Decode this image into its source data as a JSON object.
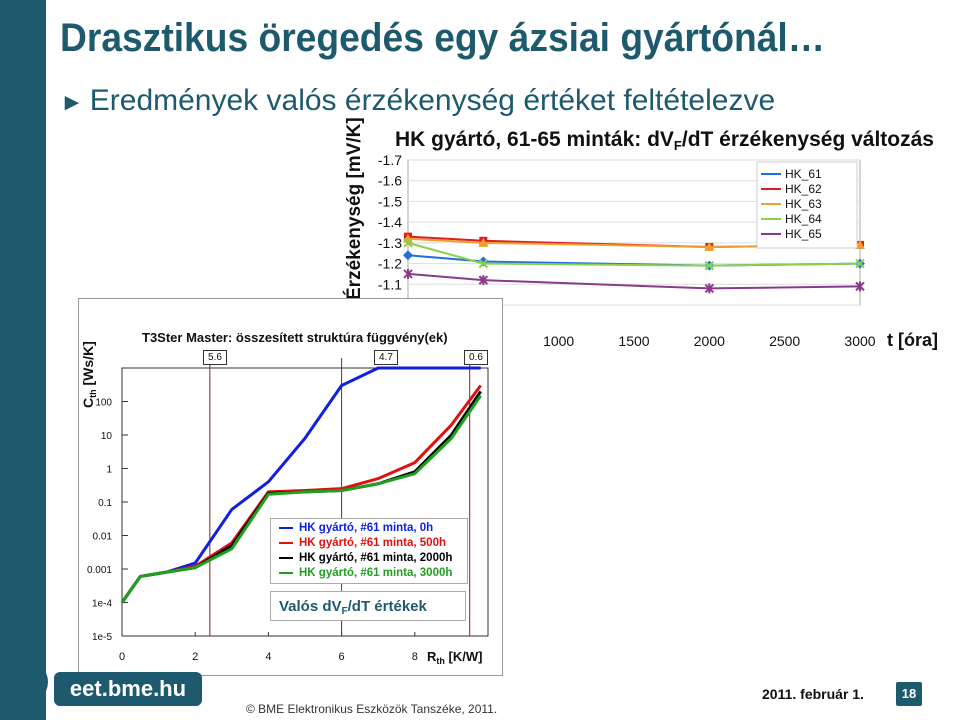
{
  "slide": {
    "title": "Drasztikus öregedés egy ázsiai gyártónál…",
    "bullet_marker": "►",
    "bullet": "Eredmények valós érzékenység értéket feltételezve",
    "website": "eet.bme.hu",
    "copyright": "© BME Elektronikus Eszközök Tanszéke, 2011.",
    "date": "2011. február 1.",
    "page_number": "18"
  },
  "colors": {
    "accent": "#1e5a6e",
    "hk61": "#1f6fe0",
    "hk62": "#e21c1c",
    "hk63": "#f0a030",
    "hk64": "#8ad04a",
    "hk65": "#8a3a8a",
    "curve_0h": "#1020e0",
    "curve_500h": "#e01010",
    "curve_2000h": "#000000",
    "curve_3000h": "#20a020"
  },
  "chart_data": [
    {
      "type": "line",
      "title_main": "HK gyártó, 61-65 minták: dV",
      "title_sub": "F",
      "title_end": "/dT érzékenység változás",
      "ylabel": "Érzékenység [mV/K]",
      "xlabel": "t [óra]",
      "y_ticks": [
        "-1.7",
        "-1.6",
        "-1.5",
        "-1.4",
        "-1.3",
        "-1.2",
        "-1.1",
        "-1"
      ],
      "x_ticks": [
        "1000",
        "1500",
        "2000",
        "2500",
        "3000"
      ],
      "y_range": [
        -1.0,
        -1.7
      ],
      "x_range": [
        0,
        3000
      ],
      "grid": true,
      "legend_position": "top-right",
      "x": [
        0,
        500,
        2000,
        3000
      ],
      "series": [
        {
          "name": "HK_61",
          "marker": "diamond",
          "values": [
            -1.24,
            -1.21,
            -1.19,
            -1.2
          ]
        },
        {
          "name": "HK_62",
          "marker": "square",
          "values": [
            -1.33,
            -1.31,
            -1.28,
            -1.29
          ]
        },
        {
          "name": "HK_63",
          "marker": "triangle",
          "values": [
            -1.32,
            -1.3,
            -1.28,
            -1.29
          ]
        },
        {
          "name": "HK_64",
          "marker": "x",
          "values": [
            -1.3,
            -1.2,
            -1.19,
            -1.2
          ]
        },
        {
          "name": "HK_65",
          "marker": "star",
          "values": [
            -1.15,
            -1.12,
            -1.08,
            -1.09
          ]
        }
      ]
    },
    {
      "type": "line",
      "title": "T3Ster Master: összesített struktúra függvény(ek)",
      "ylabel_main": "C",
      "ylabel_sub": "th",
      "ylabel_unit": "[Ws/K]",
      "xlabel_main": "R",
      "xlabel_sub": "th",
      "xlabel_unit": "[K/W]",
      "y_scale": "log",
      "y_ticks": [
        "100",
        "10",
        "1",
        "0.1",
        "0.01",
        "0.001",
        "1e-4",
        "1e-5"
      ],
      "x_ticks": [
        "0",
        "2",
        "4",
        "6",
        "8"
      ],
      "x_range": [
        0,
        10
      ],
      "y_range": [
        1e-05,
        1000
      ],
      "markers": [
        "5.6",
        "4.7",
        "0.6"
      ],
      "legend_position": "bottom-center",
      "x": [
        0,
        0.5,
        1.2,
        2.0,
        3.0,
        4.0,
        5.0,
        6.0,
        7.0,
        8.0,
        9.0,
        9.8
      ],
      "series": [
        {
          "name": "HK gyártó, #61 minta, 0h",
          "values": [
            0.0001,
            0.0006,
            0.0008,
            0.0015,
            0.06,
            0.4,
            8,
            300,
            1000,
            1000,
            1000,
            1000
          ]
        },
        {
          "name": "HK gyártó, #61 minta, 500h",
          "values": [
            0.0001,
            0.0006,
            0.0008,
            0.0012,
            0.006,
            0.2,
            0.22,
            0.25,
            0.5,
            1.5,
            20,
            300
          ]
        },
        {
          "name": "HK gyártó, #61 minta, 2000h",
          "values": [
            0.0001,
            0.0006,
            0.0008,
            0.0011,
            0.005,
            0.18,
            0.2,
            0.22,
            0.35,
            0.8,
            10,
            200
          ]
        },
        {
          "name": "HK gyártó, #61 minta, 3000h",
          "values": [
            0.0001,
            0.0006,
            0.0008,
            0.0011,
            0.004,
            0.17,
            0.2,
            0.22,
            0.35,
            0.7,
            8,
            150
          ]
        }
      ],
      "annotation_main": "Valós dV",
      "annotation_sub": "F",
      "annotation_end": "/dT értékek"
    }
  ]
}
